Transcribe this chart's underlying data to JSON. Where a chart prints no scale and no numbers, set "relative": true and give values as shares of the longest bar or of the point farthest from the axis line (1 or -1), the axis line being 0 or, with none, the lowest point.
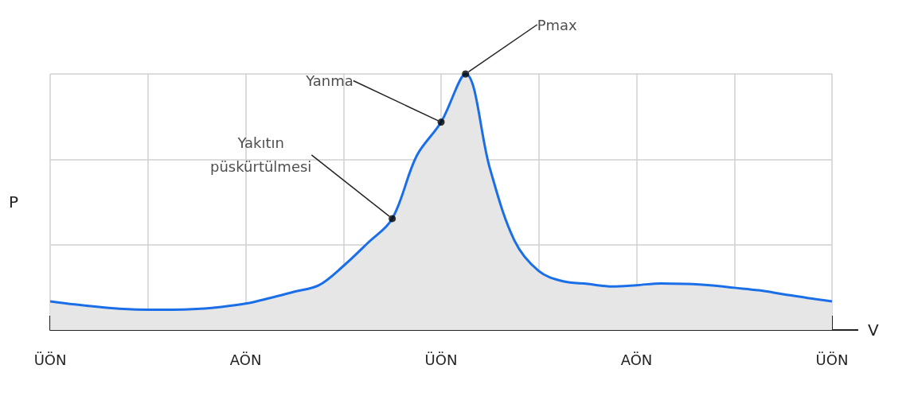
{
  "chart_data": {
    "type": "area",
    "relative": true,
    "xlabel": "V",
    "ylabel": "P",
    "grid": true,
    "marker": "none",
    "categories": [
      "ÜÖN",
      null,
      null,
      null,
      null,
      null,
      null,
      null,
      "AÖN",
      null,
      null,
      null,
      null,
      null,
      null,
      null,
      "ÜÖN",
      null,
      null,
      null,
      null,
      null,
      null,
      null,
      "AÖN",
      null,
      null,
      null,
      null,
      null,
      null,
      null,
      "ÜÖN"
    ],
    "series": [
      {
        "color": "#1a6fe8",
        "values": [
          0.112,
          0.1,
          0.09,
          0.082,
          0.079,
          0.079,
          0.082,
          0.09,
          0.103,
          0.125,
          0.15,
          0.175,
          0.25,
          0.34,
          0.435,
          0.68,
          0.812,
          1,
          0.63,
          0.35,
          0.23,
          0.19,
          0.18,
          0.17,
          0.175,
          0.182,
          0.18,
          0.175,
          0.165,
          0.155,
          0.14,
          0.125,
          0.112
        ]
      }
    ],
    "annotations": [
      "Yakıtın\npüskürtülmesi",
      "Yanma",
      "Pmax"
    ]
  }
}
